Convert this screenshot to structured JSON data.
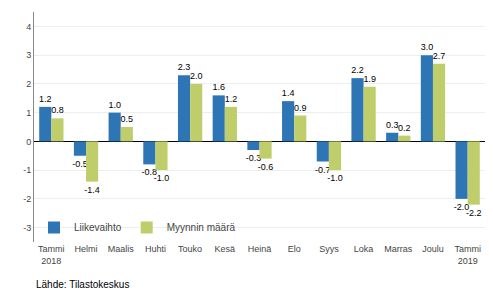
{
  "chart_data": {
    "type": "bar",
    "categories": [
      "Tammi\n2018",
      "Helmi",
      "Maalis",
      "Huhti",
      "Touko",
      "Kesä",
      "Heinä",
      "Elo",
      "Syys",
      "Loka",
      "Marras",
      "Joulu",
      "Tammi\n2019"
    ],
    "series": [
      {
        "name": "Liikevaihto",
        "color": "#2E75B6",
        "values": [
          1.2,
          -0.5,
          1.0,
          -0.8,
          2.3,
          1.6,
          -0.3,
          1.4,
          -0.7,
          2.2,
          0.3,
          3.0,
          -2.0
        ],
        "value_labels": [
          "1.2",
          "-0.5",
          "1.0",
          "-0.8",
          "2.3",
          "1.6",
          "-0.3",
          "1.4",
          "-0.7",
          "2.2",
          "0.3",
          "3.0",
          "-2.0"
        ]
      },
      {
        "name": "Myynnin määrä",
        "color": "#BFCE6B",
        "values": [
          0.8,
          -1.4,
          0.5,
          -1.0,
          2.0,
          1.2,
          -0.6,
          0.9,
          -1.0,
          1.9,
          0.2,
          2.7,
          -2.2
        ],
        "value_labels": [
          "0.8",
          "-1.4",
          "0.5",
          "-1.0",
          "2.0",
          "1.2",
          "-0.6",
          "0.9",
          "-1.0",
          "1.9",
          "0.2",
          "2.7",
          "-2.2"
        ]
      }
    ],
    "ylim": [
      -3.5,
      4.5
    ],
    "yticks": [
      -3,
      -2,
      -1,
      0,
      1,
      2,
      3,
      4
    ],
    "grid": true,
    "legend": "lower left",
    "data_labels": true,
    "annotations": [
      "Lähde: Tilastokeskus"
    ]
  }
}
